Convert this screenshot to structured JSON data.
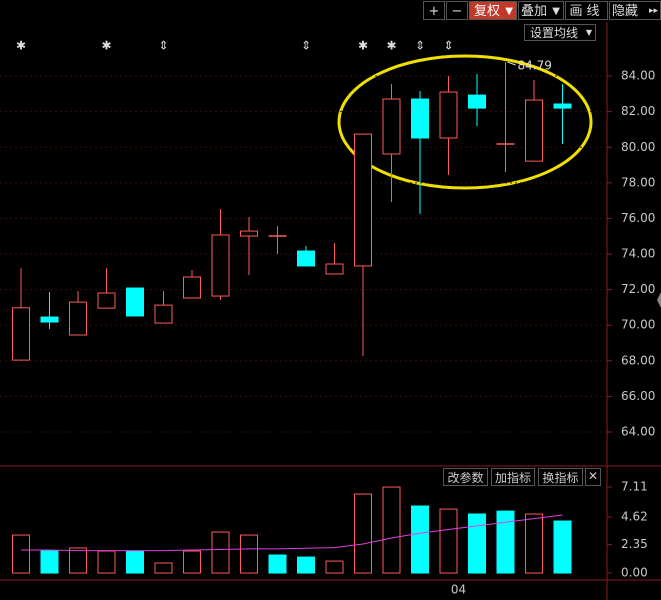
{
  "toolbar": {
    "buttons": [
      "+",
      "−",
      "复权",
      "叠加",
      "画线",
      "隐藏"
    ],
    "ma_button": "设置均线"
  },
  "volume_buttons": [
    "改参数",
    "加指标",
    "换指标"
  ],
  "chart_data": [
    {
      "type": "candlestick",
      "categories": [
        null,
        null,
        null,
        null,
        null,
        null,
        null,
        null,
        null,
        null,
        null,
        null,
        null,
        null,
        null,
        "04",
        null,
        null,
        null,
        null
      ],
      "open": [
        68.04,
        70.46,
        69.45,
        70.96,
        72.09,
        70.12,
        71.53,
        71.64,
        75.01,
        75.01,
        74.17,
        72.88,
        73.33,
        79.62,
        82.71,
        80.52,
        82.93,
        80.18,
        79.22,
        82.43
      ],
      "high": [
        73.2,
        71.87,
        71.92,
        73.21,
        72.09,
        71.92,
        73.1,
        76.53,
        76.08,
        75.57,
        74.45,
        74.62,
        80.74,
        83.55,
        83.16,
        84.0,
        84.11,
        84.79,
        83.78,
        83.55
      ],
      "low": [
        68.04,
        69.79,
        69.45,
        70.96,
        70.52,
        70.12,
        71.53,
        71.42,
        72.82,
        74.0,
        73.33,
        72.88,
        68.27,
        76.92,
        76.25,
        78.44,
        81.19,
        78.61,
        79.22,
        80.18
      ],
      "close": [
        70.98,
        70.18,
        71.3,
        71.81,
        70.52,
        71.13,
        72.71,
        75.07,
        75.29,
        75.01,
        73.33,
        73.44,
        80.74,
        82.71,
        80.52,
        83.1,
        82.2,
        80.18,
        82.65,
        82.2
      ],
      "high_label": "84.79",
      "markers": [
        "✱",
        null,
        null,
        "✱",
        null,
        "⇕",
        null,
        null,
        null,
        null,
        "⇕",
        null,
        "✱",
        "✱",
        "⇕",
        "⇕",
        null,
        null,
        null,
        null
      ],
      "up_color": "#ff5a5a",
      "down_color": "#00ffff",
      "ylim": [
        62.09,
        87.15
      ],
      "yticks": [
        {
          "value": 64,
          "label": "64.00"
        },
        {
          "value": 66,
          "label": "66.00"
        },
        {
          "value": 68,
          "label": "68.00"
        },
        {
          "value": 70,
          "label": "70.00"
        },
        {
          "value": 72,
          "label": "72.00"
        },
        {
          "value": 74,
          "label": "74.00"
        },
        {
          "value": 76,
          "label": "76.00"
        },
        {
          "value": 78,
          "label": "78.00"
        },
        {
          "value": 80,
          "label": "80.00"
        },
        {
          "value": 82,
          "label": "82.00"
        },
        {
          "value": 84,
          "label": "84.00"
        }
      ],
      "grid": true
    },
    {
      "type": "bar",
      "values": [
        3.14,
        1.82,
        2.07,
        1.82,
        1.82,
        0.83,
        1.82,
        3.39,
        3.14,
        1.49,
        1.32,
        0.99,
        6.53,
        7.11,
        5.54,
        5.29,
        4.88,
        5.12,
        4.88,
        4.3
      ],
      "colors": [
        "#ff5a5a",
        "#00ffff",
        "#ff5a5a",
        "#ff5a5a",
        "#00ffff",
        "#ff5a5a",
        "#ff5a5a",
        "#ff5a5a",
        "#ff5a5a",
        "#00ffff",
        "#00ffff",
        "#ff5a5a",
        "#ff5a5a",
        "#ff5a5a",
        "#00ffff",
        "#ff5a5a",
        "#00ffff",
        "#00ffff",
        "#ff5a5a",
        "#00ffff"
      ],
      "ma": {
        "color": "#e040e0",
        "values": [
          1.9,
          1.9,
          1.85,
          1.85,
          1.85,
          1.85,
          1.9,
          1.95,
          2.0,
          2.0,
          2.05,
          2.1,
          2.4,
          2.9,
          3.3,
          3.6,
          3.9,
          4.2,
          4.5,
          4.8
        ]
      },
      "ylim": [
        -0.41,
        7.94
      ],
      "yticks": [
        {
          "value": 0,
          "label": "0.00"
        },
        2.35,
        4.62,
        7.11
      ]
    }
  ]
}
